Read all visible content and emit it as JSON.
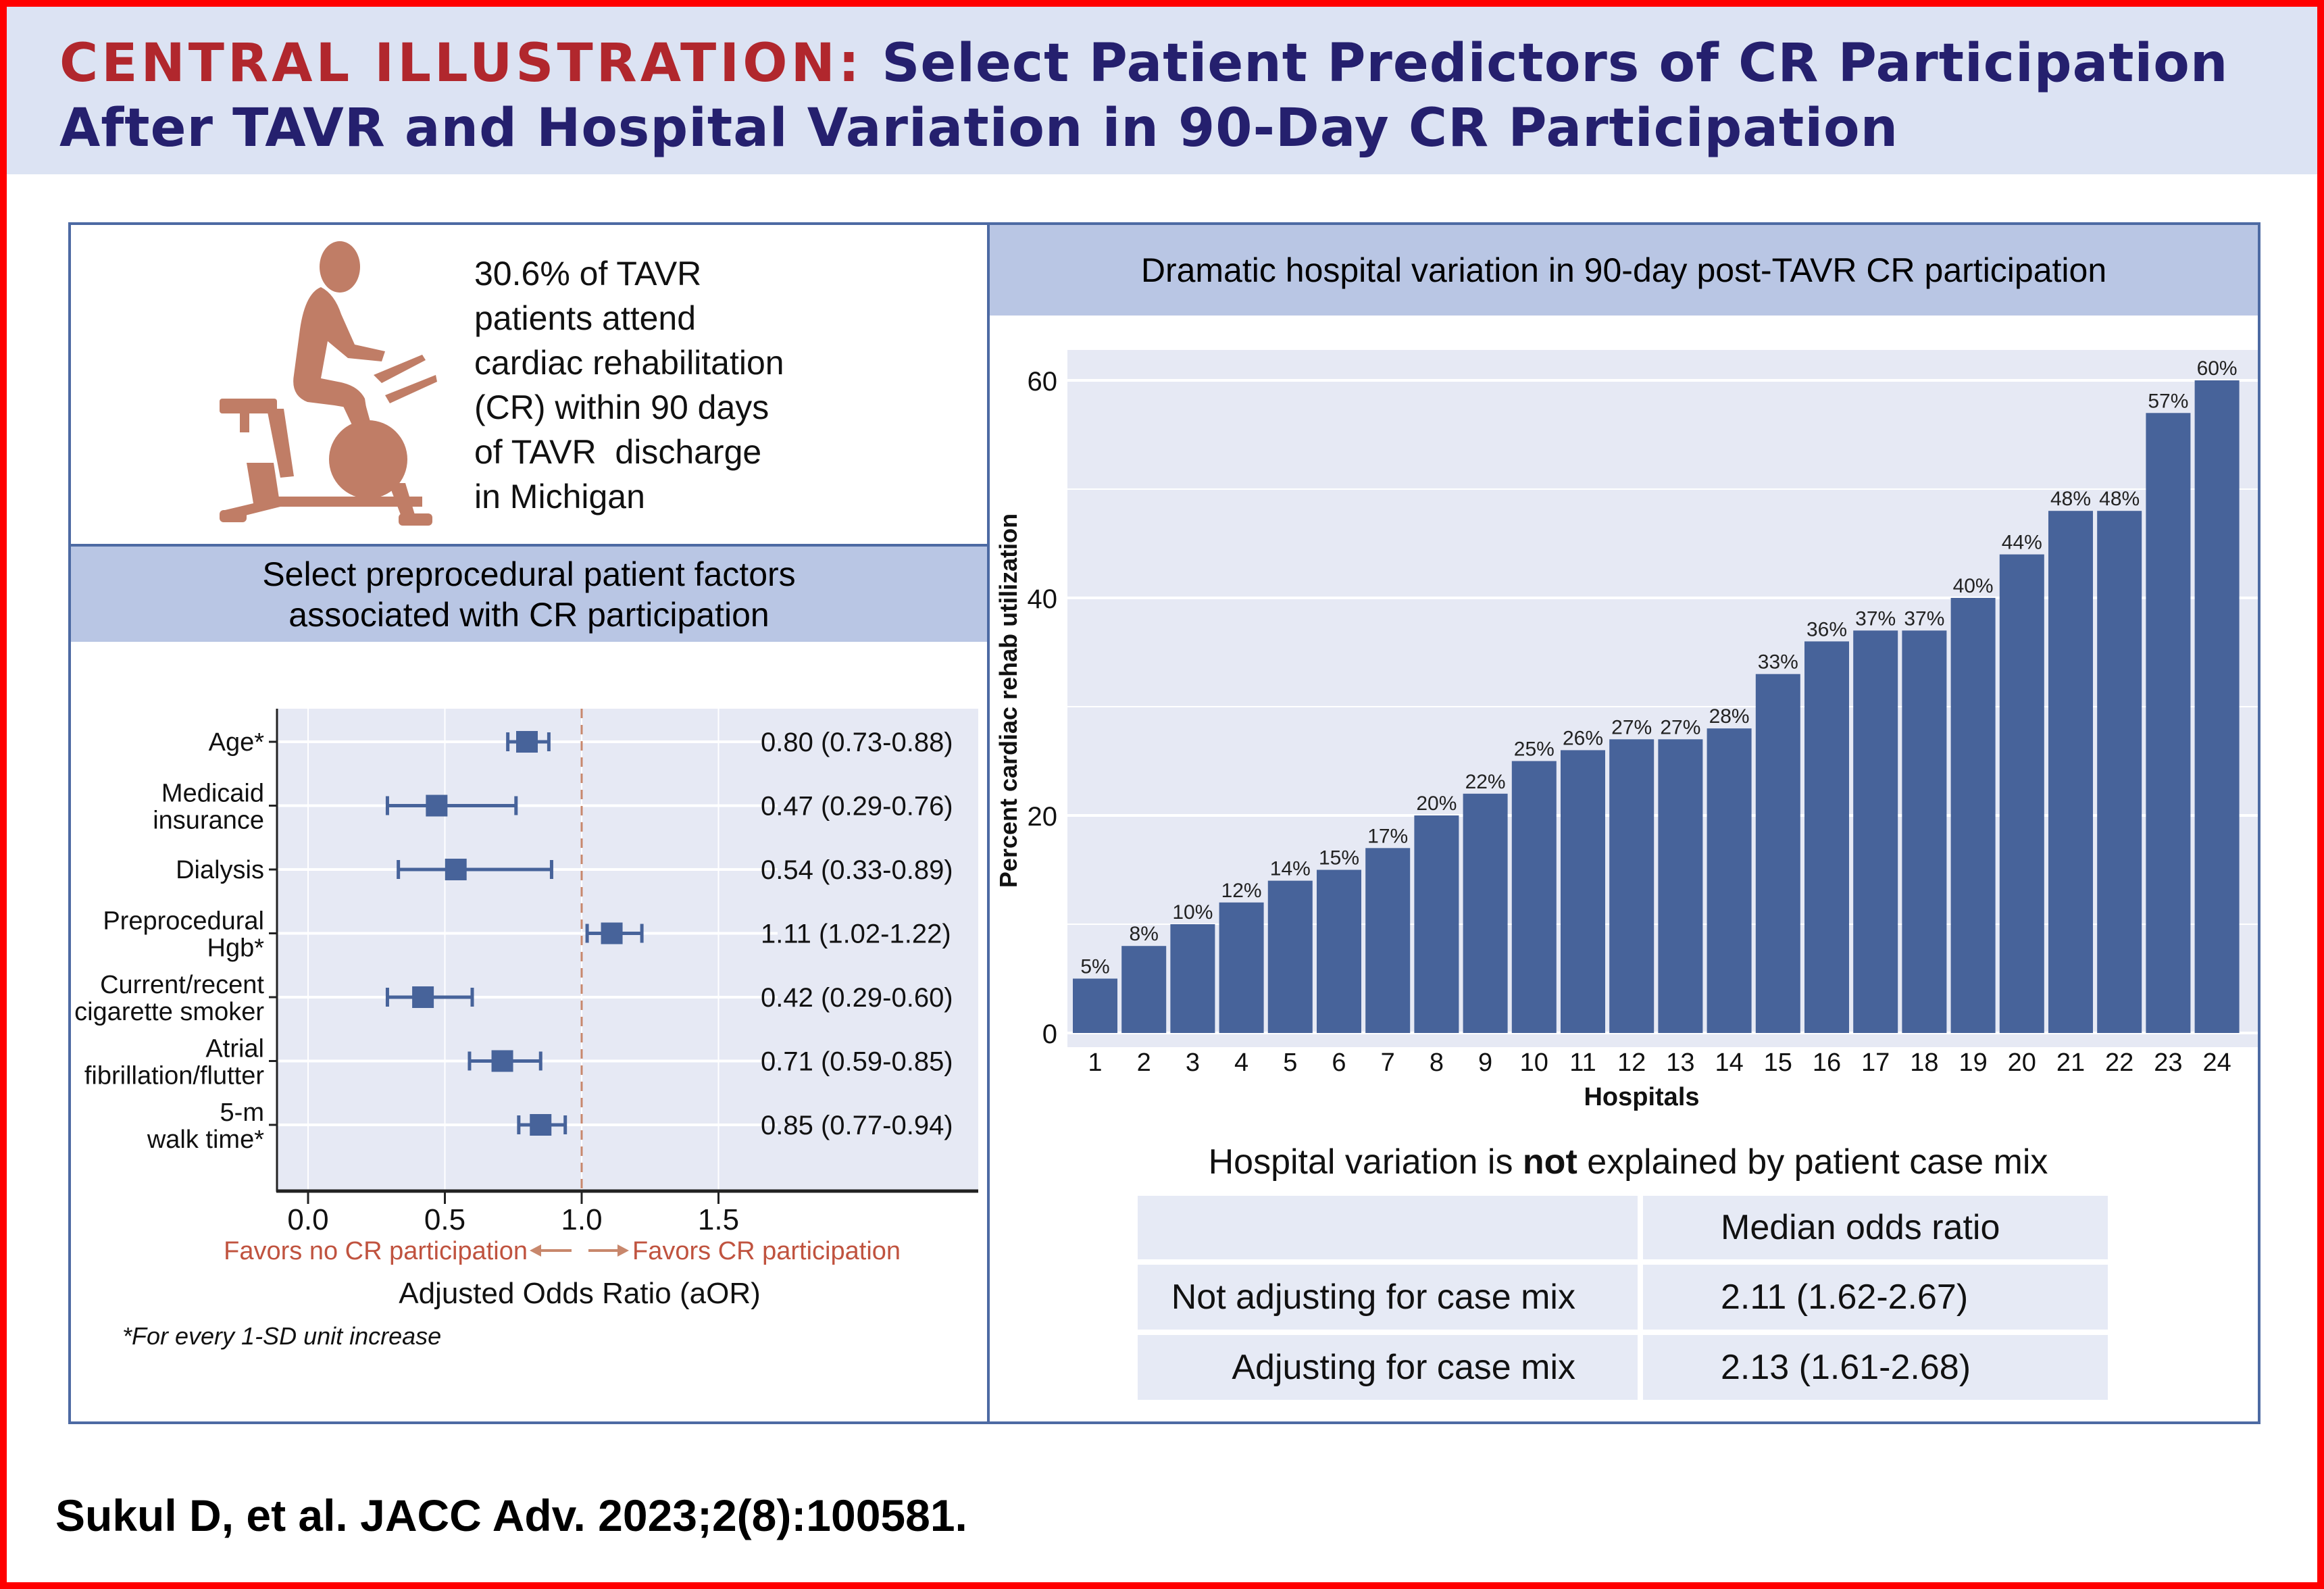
{
  "header": {
    "lead": "CENTRAL ILLUSTRATION:",
    "title_line1": " Select Patient Predictors of CR Participation",
    "title_line2": "After TAVR and Hospital Variation in 90-Day CR Participation"
  },
  "stat_box": {
    "icon": "exercise-bike-icon",
    "lines": [
      "30.6% of TAVR",
      "patients attend",
      "cardiac rehabilitation",
      "(CR) within 90 days",
      "of TAVR  discharge",
      "in Michigan"
    ]
  },
  "left_panel": {
    "heading_line1": "Select preprocedural patient factors",
    "heading_line2": "associated with CR participation",
    "footnote": "*For every 1-SD unit increase"
  },
  "right_panel": {
    "heading": "Dramatic hospital variation in 90-day post-TAVR CR participation",
    "table_title_pre": "Hospital variation is ",
    "table_title_bold": "not",
    "table_title_post": " explained by patient case mix",
    "table": {
      "header": [
        "",
        "Median odds ratio"
      ],
      "rows": [
        [
          "Not adjusting for case mix",
          "2.11 (1.62-2.67)"
        ],
        [
          "Adjusting for case mix",
          "2.13 (1.61-2.68)"
        ]
      ]
    }
  },
  "colors": {
    "accent_red": "#b1272d",
    "title_navy": "#25206e",
    "bar_blue": "#47639a",
    "panel_header": "#b9c6e4",
    "plot_bg": "#e6e9f4",
    "favor_text": "#c0533f",
    "ref_line": "#c8876c"
  },
  "citation": "Sukul D, et al. JACC Adv. 2023;2(8):100581.",
  "chart_data": [
    {
      "type": "scatter",
      "subtype": "forest",
      "title": "Select preprocedural patient factors associated with CR participation",
      "xlabel": "Adjusted Odds Ratio (aOR)",
      "xlim": [
        -0.05,
        2.55
      ],
      "xticks": [
        "0.0",
        "0.5",
        "1.0",
        "1.5"
      ],
      "xtick_values": [
        0,
        0.5,
        1.0,
        1.5
      ],
      "reference_line": 1.0,
      "direction_left": "Favors no CR participation",
      "direction_right": "Favors CR participation",
      "grid": true,
      "rows": [
        {
          "label": [
            "Age*"
          ],
          "aor": 0.8,
          "lo": 0.73,
          "hi": 0.88,
          "text": "0.80 (0.73-0.88)"
        },
        {
          "label": [
            "Medicaid",
            "insurance"
          ],
          "aor": 0.47,
          "lo": 0.29,
          "hi": 0.76,
          "text": "0.47 (0.29-0.76)"
        },
        {
          "label": [
            "Dialysis"
          ],
          "aor": 0.54,
          "lo": 0.33,
          "hi": 0.89,
          "text": "0.54 (0.33-0.89)"
        },
        {
          "label": [
            "Preprocedural",
            "Hgb*"
          ],
          "aor": 1.11,
          "lo": 1.02,
          "hi": 1.22,
          "text": "1.11 (1.02-1.22)"
        },
        {
          "label": [
            "Current/recent",
            "cigarette smoker"
          ],
          "aor": 0.42,
          "lo": 0.29,
          "hi": 0.6,
          "text": "0.42 (0.29-0.60)"
        },
        {
          "label": [
            "Atrial",
            "fibrillation/flutter"
          ],
          "aor": 0.71,
          "lo": 0.59,
          "hi": 0.85,
          "text": "0.71 (0.59-0.85)"
        },
        {
          "label": [
            "5-m",
            "walk time*"
          ],
          "aor": 0.85,
          "lo": 0.77,
          "hi": 0.94,
          "text": "0.85 (0.77-0.94)"
        }
      ]
    },
    {
      "type": "bar",
      "title": "Dramatic hospital variation in 90-day post-TAVR CR participation",
      "xlabel": "Hospitals",
      "ylabel": "Percent cardiac rehab utilization",
      "ylim": [
        -3,
        66
      ],
      "yticks": [
        0,
        20,
        40,
        60
      ],
      "grid": true,
      "categories": [
        "1",
        "2",
        "3",
        "4",
        "5",
        "6",
        "7",
        "8",
        "9",
        "10",
        "11",
        "12",
        "13",
        "14",
        "15",
        "16",
        "17",
        "18",
        "19",
        "20",
        "21",
        "22",
        "23",
        "24"
      ],
      "values": [
        5,
        8,
        10,
        12,
        14,
        15,
        17,
        20,
        22,
        25,
        26,
        27,
        27,
        28,
        33,
        36,
        37,
        37,
        40,
        44,
        48,
        48,
        57,
        60
      ],
      "labels": [
        "5%",
        "8%",
        "10%",
        "12%",
        "14%",
        "15%",
        "17%",
        "20%",
        "22%",
        "25%",
        "26%",
        "27%",
        "27%",
        "28%",
        "33%",
        "36%",
        "37%",
        "37%",
        "40%",
        "44%",
        "48%",
        "48%",
        "57%",
        "60%"
      ]
    }
  ]
}
